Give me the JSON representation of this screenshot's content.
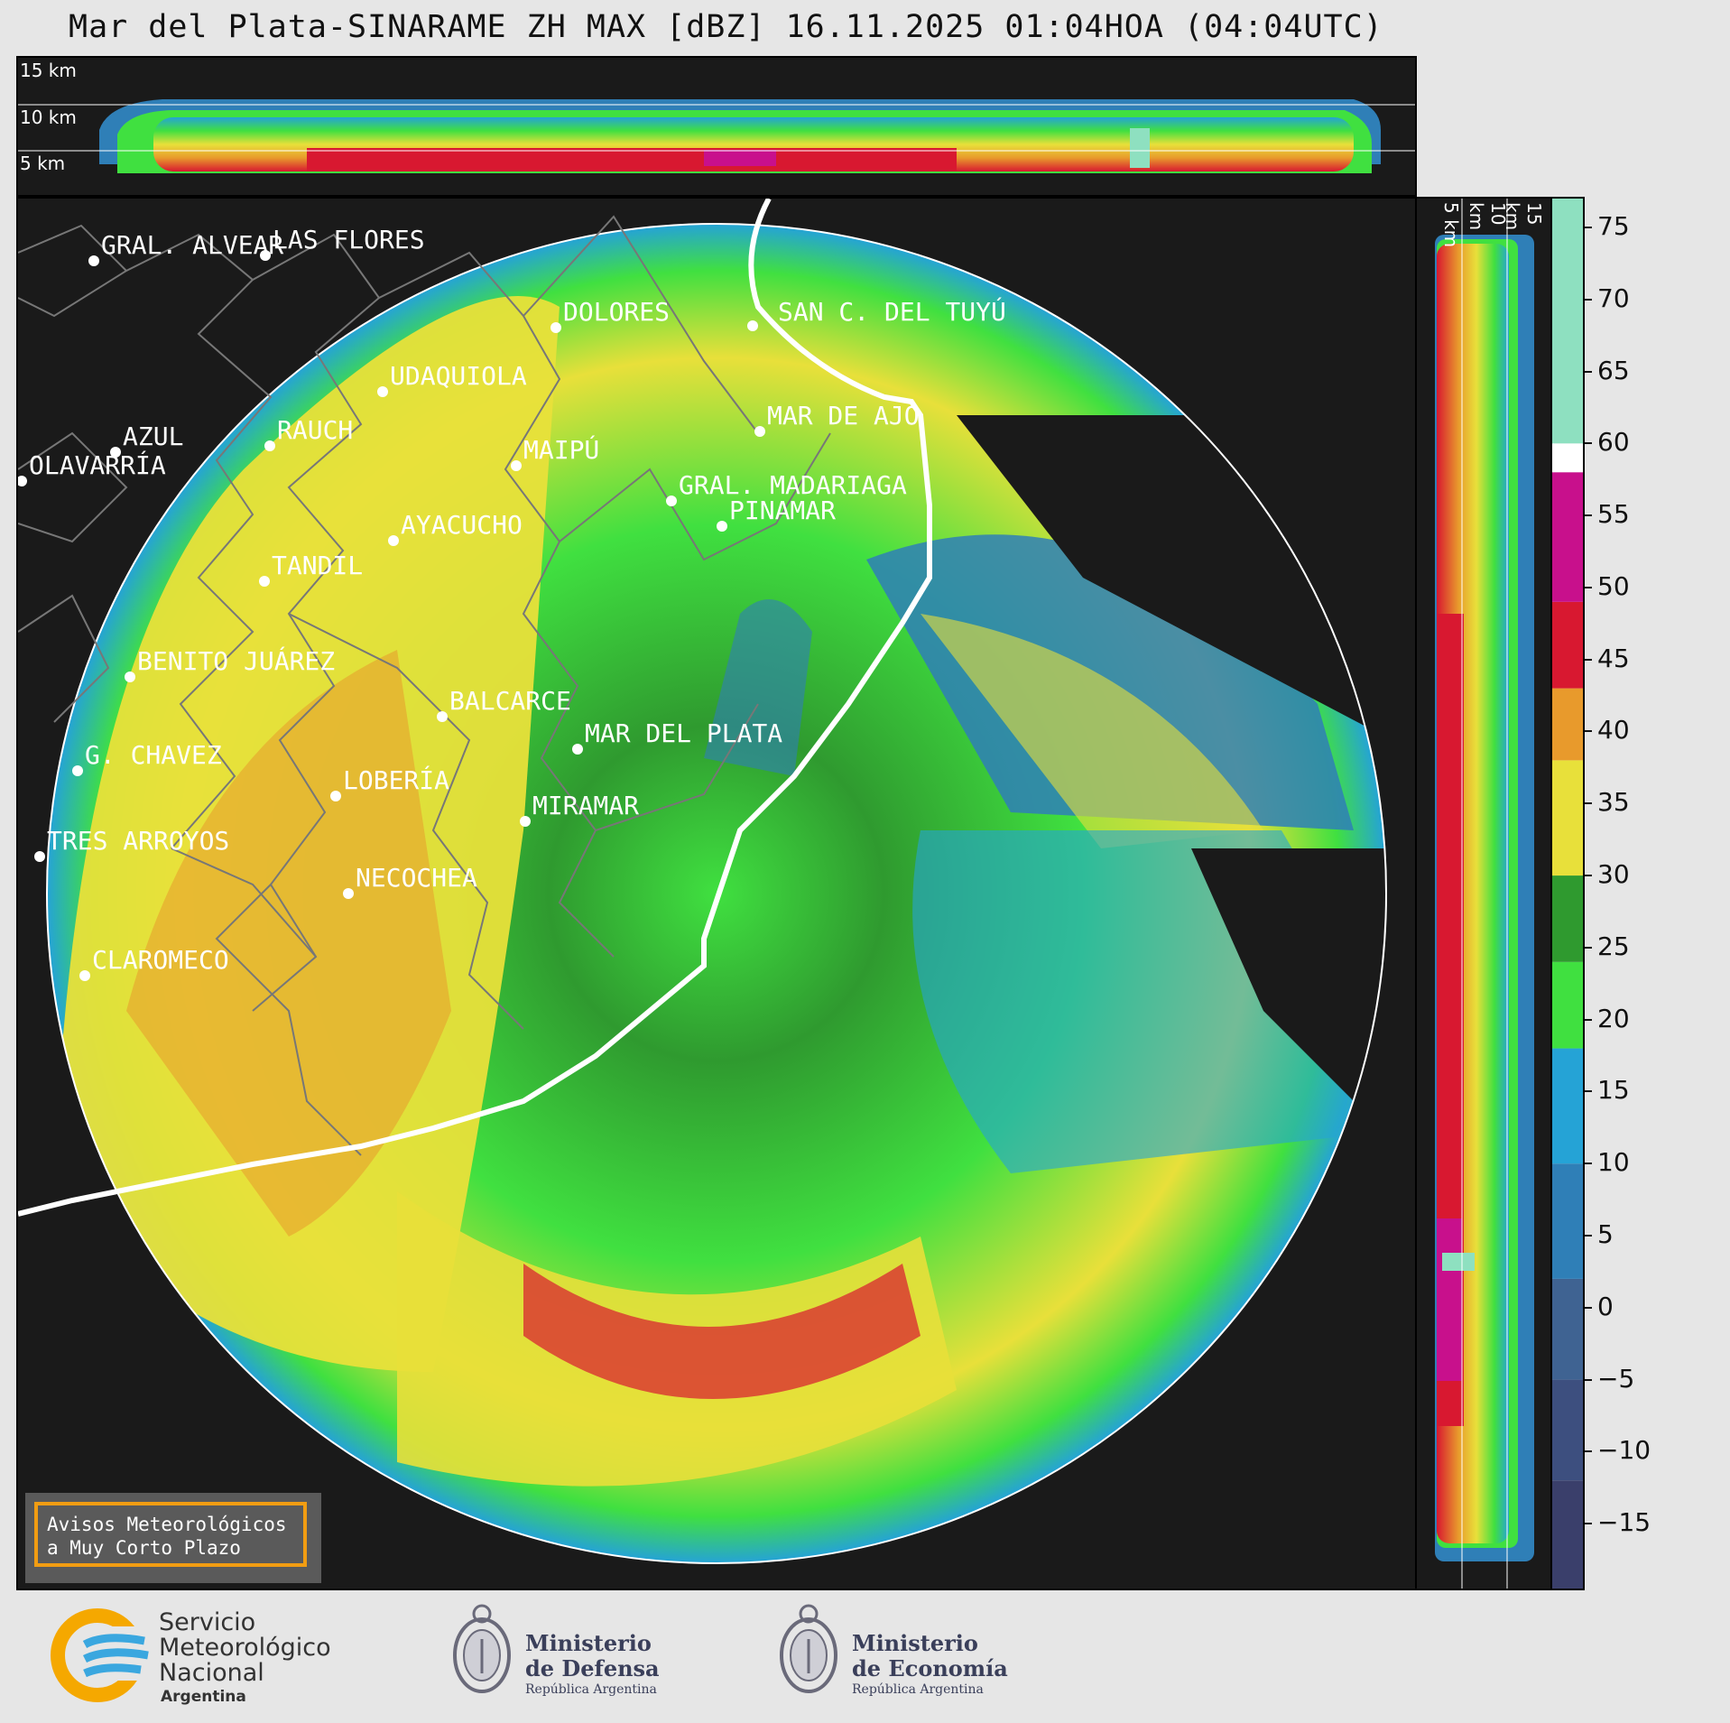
{
  "title": "Mar del Plata-SINARAME ZH MAX [dBZ] 16.11.2025 01:04HOA (04:04UTC)",
  "top_panel": {
    "height_labels": [
      "15 km",
      "10 km",
      "5 km"
    ]
  },
  "side_panel": {
    "height_labels": [
      "5 km",
      "10 km",
      "15 km"
    ]
  },
  "colorbar": {
    "ticks": [
      "75",
      "70",
      "65",
      "60",
      "55",
      "50",
      "45",
      "40",
      "35",
      "30",
      "25",
      "20",
      "15",
      "10",
      "5",
      "0",
      "−5",
      "−10",
      "−15"
    ],
    "tick_values": [
      75,
      70,
      65,
      60,
      55,
      50,
      45,
      40,
      35,
      30,
      25,
      20,
      15,
      10,
      5,
      0,
      -5,
      -10,
      -15
    ],
    "range": [
      -19.5,
      77
    ],
    "bands": [
      {
        "from": -19.5,
        "to": -12,
        "color": "#3a3f6b"
      },
      {
        "from": -12,
        "to": -5,
        "color": "#3d4f7f"
      },
      {
        "from": -5,
        "to": 2,
        "color": "#3f6392"
      },
      {
        "from": 2,
        "to": 10,
        "color": "#2f7fb7"
      },
      {
        "from": 10,
        "to": 18,
        "color": "#25a3d6"
      },
      {
        "from": 18,
        "to": 24,
        "color": "#40e040"
      },
      {
        "from": 24,
        "to": 30,
        "color": "#2f9a2f"
      },
      {
        "from": 30,
        "to": 38,
        "color": "#e8e03a"
      },
      {
        "from": 38,
        "to": 43,
        "color": "#e89a2c"
      },
      {
        "from": 43,
        "to": 49,
        "color": "#d81830"
      },
      {
        "from": 49,
        "to": 58,
        "color": "#c8108c"
      },
      {
        "from": 58,
        "to": 60,
        "color": "#ffffff"
      },
      {
        "from": 60,
        "to": 77,
        "color": "#8ee0c0"
      }
    ]
  },
  "map": {
    "cities": [
      {
        "name": "GRAL. ALVEAR"
      },
      {
        "name": "LAS FLORES"
      },
      {
        "name": "DOLORES"
      },
      {
        "name": "SAN C. DEL TUYÚ"
      },
      {
        "name": "UDAQUIOLA"
      },
      {
        "name": "AZUL"
      },
      {
        "name": "RAUCH"
      },
      {
        "name": "OLAVARRÍA"
      },
      {
        "name": "MAIPÚ"
      },
      {
        "name": "MAR DE AJO"
      },
      {
        "name": "GRAL. MADARIAGA"
      },
      {
        "name": "PINAMAR"
      },
      {
        "name": "AYACUCHO"
      },
      {
        "name": "TANDIL"
      },
      {
        "name": "BENITO JUÁREZ"
      },
      {
        "name": "BALCARCE"
      },
      {
        "name": "MAR DEL PLATA"
      },
      {
        "name": "G. CHAVEZ"
      },
      {
        "name": "LOBERÍA"
      },
      {
        "name": "MIRAMAR"
      },
      {
        "name": "TRES ARROYOS"
      },
      {
        "name": "NECOCHEA"
      },
      {
        "name": "CLAROMECO"
      }
    ]
  },
  "notice": {
    "line1": "Avisos Meteorológicos",
    "line2": "a Muy Corto Plazo"
  },
  "logos": {
    "smn": {
      "line1": "Servicio",
      "line2": "Meteorológico",
      "line3": "Nacional",
      "line4": "Argentina"
    },
    "defensa": {
      "line1": "Ministerio",
      "line2": "de Defensa",
      "line3": "República Argentina"
    },
    "economia": {
      "line1": "Ministerio",
      "line2": "de Economía",
      "line3": "República Argentina"
    }
  }
}
